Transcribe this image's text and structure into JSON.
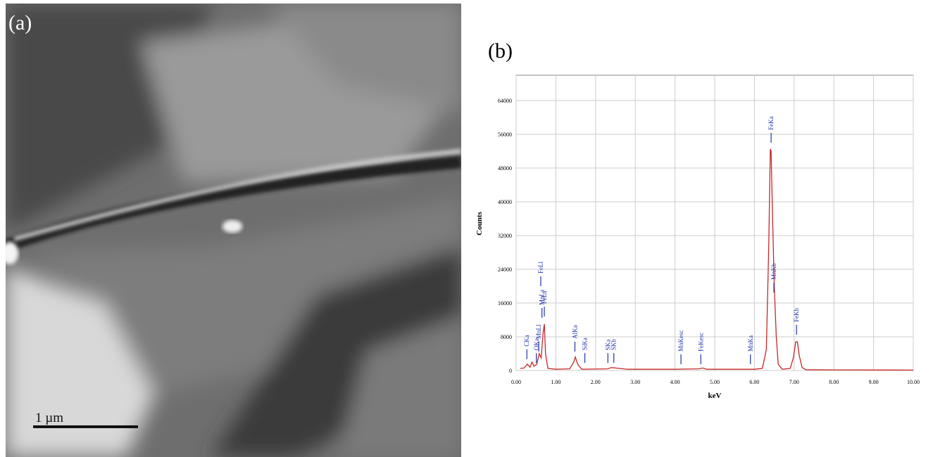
{
  "panel_a": {
    "label": "(a)",
    "scale_bar": "1 µm"
  },
  "chart_data": {
    "type": "line",
    "panel_label": "(b)",
    "x_label": "keV",
    "y_label": "Counts",
    "color": "#c62828",
    "grid": true,
    "xlim": [
      0,
      10
    ],
    "ylim": [
      0,
      70000
    ],
    "xticks": [
      {
        "value": 0,
        "label": "0.00"
      },
      {
        "value": 1,
        "label": "1.00"
      },
      {
        "value": 2,
        "label": "2.00"
      },
      {
        "value": 3,
        "label": "3.00"
      },
      {
        "value": 4,
        "label": "4.00"
      },
      {
        "value": 5,
        "label": "5.00"
      },
      {
        "value": 6,
        "label": "6.00"
      },
      {
        "value": 7,
        "label": "7.00"
      },
      {
        "value": 8,
        "label": "8.00"
      },
      {
        "value": 9,
        "label": "9.00"
      },
      {
        "value": 10,
        "label": "10.00"
      }
    ],
    "yticks": [
      0,
      8000,
      16000,
      24000,
      32000,
      40000,
      48000,
      56000,
      64000
    ],
    "x": [
      0.1,
      0.2,
      0.28,
      0.35,
      0.4,
      0.45,
      0.52,
      0.58,
      0.63,
      0.68,
      0.71,
      0.74,
      0.8,
      1.0,
      1.35,
      1.45,
      1.49,
      1.55,
      1.65,
      2.3,
      2.4,
      2.6,
      2.8,
      4.0,
      4.6,
      4.7,
      4.8,
      6.0,
      6.2,
      6.3,
      6.36,
      6.4,
      6.42,
      6.46,
      6.5,
      6.55,
      6.6,
      6.7,
      6.9,
      6.98,
      7.04,
      7.08,
      7.13,
      7.2,
      7.3,
      8.0,
      10.0
    ],
    "values": [
      500,
      600,
      1500,
      800,
      2000,
      1000,
      1500,
      4000,
      3000,
      9000,
      11000,
      4000,
      500,
      300,
      400,
      2000,
      3200,
      1500,
      300,
      400,
      700,
      500,
      300,
      300,
      400,
      600,
      300,
      300,
      500,
      5000,
      29000,
      52500,
      52000,
      35000,
      20000,
      8000,
      1500,
      300,
      500,
      3000,
      6800,
      6800,
      3500,
      700,
      200,
      150,
      100
    ],
    "annotations": [
      {
        "text": "CKa",
        "x": 0.27,
        "y": 2700
      },
      {
        "text": "OKa",
        "x": 0.51,
        "y": 1800
      },
      {
        "text": "MnLl",
        "x": 0.57,
        "y": 4500
      },
      {
        "text": "MnLa",
        "x": 0.65,
        "y": 12500
      },
      {
        "text": "FeLl",
        "x": 0.62,
        "y": 20000
      },
      {
        "text": "FeLa",
        "x": 0.71,
        "y": 12800
      },
      {
        "text": "AlKa",
        "x": 1.48,
        "y": 4500
      },
      {
        "text": "SiKa",
        "x": 1.73,
        "y": 1800
      },
      {
        "text": "SKa",
        "x": 2.31,
        "y": 1800
      },
      {
        "text": "SKb",
        "x": 2.46,
        "y": 1800
      },
      {
        "text": "MnKesc",
        "x": 4.15,
        "y": 1500
      },
      {
        "text": "FeKesc",
        "x": 4.65,
        "y": 1500
      },
      {
        "text": "MnKa",
        "x": 5.9,
        "y": 1500
      },
      {
        "text": "FeKa",
        "x": 6.42,
        "y": 54000
      },
      {
        "text": "MnKb",
        "x": 6.49,
        "y": 18500
      },
      {
        "text": "FeKb",
        "x": 7.06,
        "y": 8500
      }
    ]
  }
}
